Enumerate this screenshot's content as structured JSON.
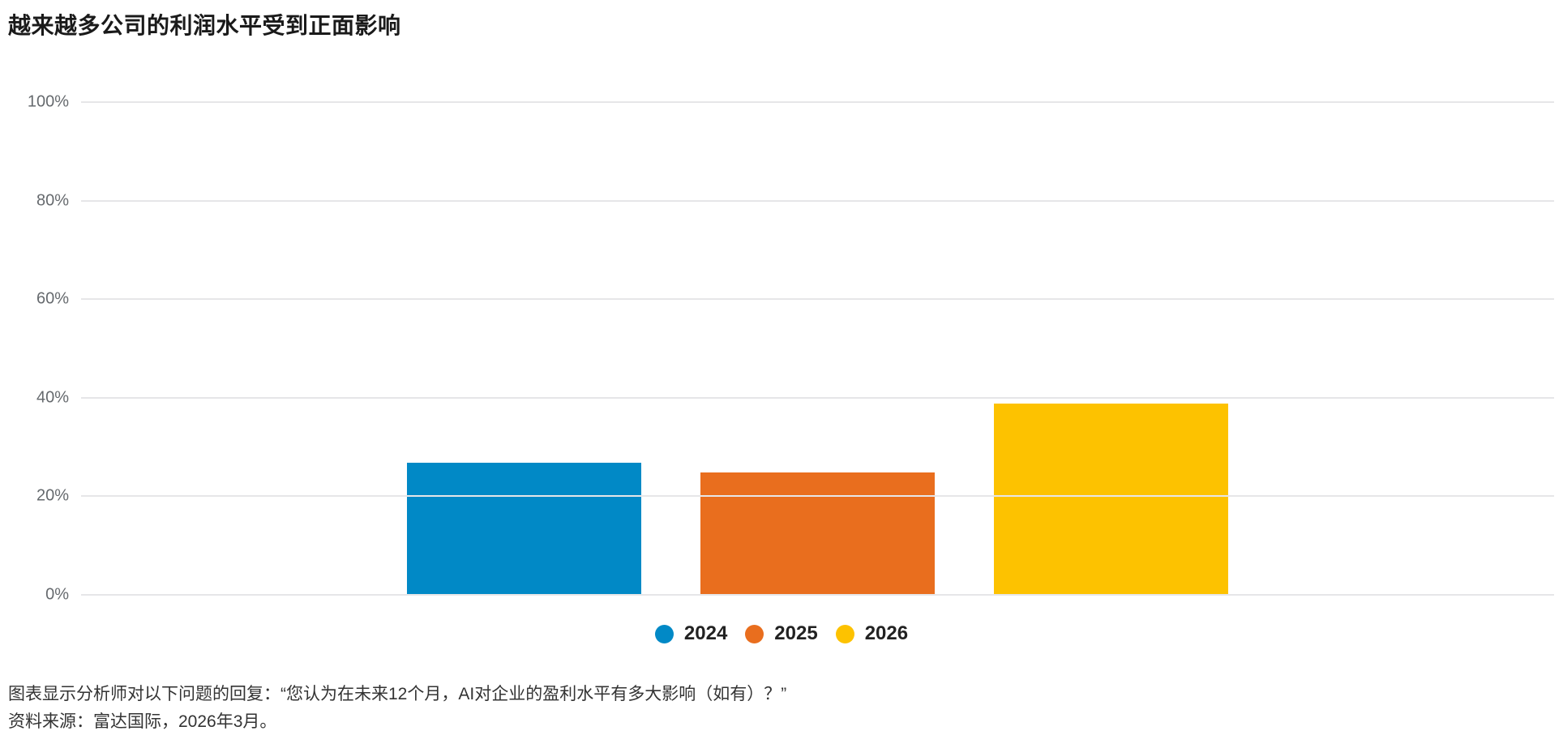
{
  "page": {
    "title": "越来越多公司的利润水平受到正面影响",
    "footnote_line1": "图表显示分析师对以下问题的回复：“您认为在未来12个月，AI对企业的盈利水平有多大影响（如有）？”",
    "footnote_line2": "资料来源：富达国际，2026年3月。"
  },
  "chart_data": {
    "type": "bar",
    "title": "越来越多公司的利润水平受到正面影响",
    "categories": [
      ""
    ],
    "series": [
      {
        "name": "2024",
        "values": [
          27
        ],
        "color": "#0189c6"
      },
      {
        "name": "2025",
        "values": [
          25
        ],
        "color": "#e96e1e"
      },
      {
        "name": "2026",
        "values": [
          39
        ],
        "color": "#fdc200"
      }
    ],
    "xlabel": "",
    "ylabel": "",
    "ylim": [
      0,
      100
    ],
    "yticks": [
      {
        "value": 100,
        "label": "100%"
      },
      {
        "value": 80,
        "label": "80%"
      },
      {
        "value": 60,
        "label": "60%"
      },
      {
        "value": 40,
        "label": "40%"
      },
      {
        "value": 20,
        "label": "20%"
      },
      {
        "value": 0,
        "label": "0%"
      }
    ],
    "grid": "horizontal",
    "gridline_color": "#e6e6e8",
    "legend_position": "bottom-center",
    "annotations": []
  }
}
